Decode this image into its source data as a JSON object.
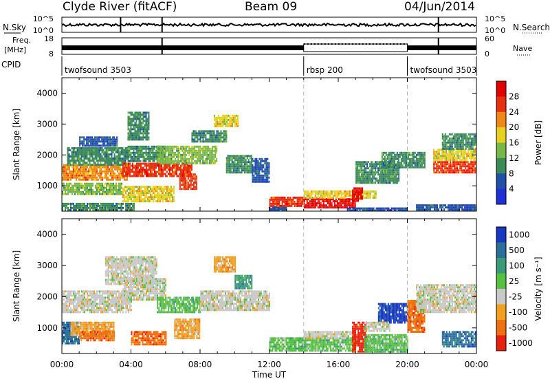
{
  "header": {
    "station": "Clyde River (fitACF)",
    "beam": "Beam 09",
    "date": "04/Jun/2014"
  },
  "top_panels": {
    "nsky_label": "N.Sky",
    "nsearch_label": "N.Search",
    "nsky_ticks": [
      "10^5",
      "10^0"
    ],
    "freq_label_1": "Freq.",
    "freq_label_2": "[MHz]",
    "freq_ticks": [
      "18",
      "8"
    ],
    "nave_ticks": [
      "60",
      "0"
    ],
    "nave_label": "Nave",
    "cpid_label": "CPID",
    "cpid_segments": [
      {
        "name": "twofsound 3503",
        "start_hour": 0,
        "end_hour": 14
      },
      {
        "name": "rbsp 200",
        "start_hour": 14,
        "end_hour": 20
      },
      {
        "name": "twofsound 3503",
        "start_hour": 20,
        "end_hour": 24
      }
    ]
  },
  "chart_data": [
    {
      "type": "heatmap",
      "panel": "power",
      "ylabel": "Slant Range [km]",
      "yticks": [
        1000,
        2000,
        3000,
        4000
      ],
      "ylim": [
        180,
        4500
      ],
      "xlim": [
        0,
        24
      ],
      "colorbar_label": "Power [dB]",
      "colorbar_ticks": [
        4,
        8,
        12,
        16,
        20,
        24,
        28
      ],
      "colorbar_range": [
        0,
        32
      ],
      "colors": [
        "#2030d8",
        "#2050a8",
        "#3a8a5a",
        "#78b848",
        "#e8d020",
        "#f08818",
        "#e83010",
        "#e00000"
      ],
      "regions": [
        {
          "t0": 0.0,
          "t1": 4.2,
          "r0": 180,
          "r1": 450,
          "level": 8
        },
        {
          "t0": 0.0,
          "t1": 3.5,
          "r0": 700,
          "r1": 1100,
          "level": 14
        },
        {
          "t0": 0.0,
          "t1": 3.8,
          "r0": 1200,
          "r1": 1700,
          "level": 20
        },
        {
          "t0": 0.3,
          "t1": 3.8,
          "r0": 1700,
          "r1": 2250,
          "level": 10
        },
        {
          "t0": 1.0,
          "t1": 3.2,
          "r0": 2300,
          "r1": 2600,
          "level": 6
        },
        {
          "t0": 3.5,
          "t1": 7.5,
          "r0": 1300,
          "r1": 1750,
          "level": 24
        },
        {
          "t0": 3.5,
          "t1": 6.5,
          "r0": 500,
          "r1": 1000,
          "level": 18
        },
        {
          "t0": 3.8,
          "t1": 6.0,
          "r0": 1800,
          "r1": 2300,
          "level": 10
        },
        {
          "t0": 3.8,
          "t1": 5.0,
          "r0": 2500,
          "r1": 3400,
          "level": 8
        },
        {
          "t0": 5.5,
          "t1": 9.0,
          "r0": 1700,
          "r1": 2300,
          "level": 12
        },
        {
          "t0": 6.8,
          "t1": 7.8,
          "r0": 900,
          "r1": 1400,
          "level": 26
        },
        {
          "t0": 7.5,
          "t1": 9.5,
          "r0": 2400,
          "r1": 2800,
          "level": 8
        },
        {
          "t0": 8.8,
          "t1": 10.2,
          "r0": 2900,
          "r1": 3300,
          "level": 16
        },
        {
          "t0": 9.5,
          "t1": 11.0,
          "r0": 1400,
          "r1": 2000,
          "level": 10
        },
        {
          "t0": 11.0,
          "t1": 12.0,
          "r0": 1100,
          "r1": 1900,
          "level": 6
        },
        {
          "t0": 12.0,
          "t1": 13.0,
          "r0": 200,
          "r1": 350,
          "level": 6
        },
        {
          "t0": 12.0,
          "t1": 14.0,
          "r0": 350,
          "r1": 650,
          "level": 26
        },
        {
          "t0": 14.0,
          "t1": 17.0,
          "r0": 300,
          "r1": 600,
          "level": 30
        },
        {
          "t0": 14.0,
          "t1": 18.2,
          "r0": 600,
          "r1": 850,
          "level": 18
        },
        {
          "t0": 16.8,
          "t1": 17.4,
          "r0": 500,
          "r1": 950,
          "level": 28
        },
        {
          "t0": 17.0,
          "t1": 19.5,
          "r0": 1100,
          "r1": 1800,
          "level": 8
        },
        {
          "t0": 18.5,
          "t1": 21.0,
          "r0": 1600,
          "r1": 2100,
          "level": 10
        },
        {
          "t0": 16.5,
          "t1": 20.0,
          "r0": 180,
          "r1": 300,
          "level": 6
        },
        {
          "t0": 21.5,
          "t1": 24.0,
          "r0": 1450,
          "r1": 1800,
          "level": 24
        },
        {
          "t0": 21.5,
          "t1": 24.0,
          "r0": 1800,
          "r1": 2200,
          "level": 16
        },
        {
          "t0": 22.0,
          "t1": 24.0,
          "r0": 2200,
          "r1": 2700,
          "level": 10
        },
        {
          "t0": 20.5,
          "t1": 24.0,
          "r0": 180,
          "r1": 400,
          "level": 6
        }
      ]
    },
    {
      "type": "heatmap",
      "panel": "velocity",
      "xlabel": "Time UT",
      "ylabel": "Slant Range [km]",
      "xticks": [
        "00:00",
        "04:00",
        "08:00",
        "12:00",
        "16:00",
        "20:00",
        "00:00"
      ],
      "yticks": [
        1000,
        2000,
        3000,
        4000
      ],
      "ylim": [
        180,
        4500
      ],
      "xlim": [
        0,
        24
      ],
      "colorbar_label": "Velocity [m s⁻¹]",
      "colorbar_ticks": [
        "1000",
        "500",
        "100",
        "25",
        "-25",
        "-100",
        "-500",
        "-1000"
      ],
      "colors": [
        "#1838c0",
        "#2a6e9a",
        "#3a9a78",
        "#56c040",
        "#c8c8c8",
        "#f0a020",
        "#f07010",
        "#e82010"
      ],
      "regions": [
        {
          "t0": 0.0,
          "t1": 1.0,
          "r0": 500,
          "r1": 1200,
          "level": 1
        },
        {
          "t0": 0.0,
          "t1": 4.0,
          "r0": 1500,
          "r1": 2200,
          "level": 4
        },
        {
          "t0": 0.5,
          "t1": 3.0,
          "r0": 800,
          "r1": 1200,
          "level": 5
        },
        {
          "t0": 1.0,
          "t1": 3.0,
          "r0": 600,
          "r1": 900,
          "level": 6
        },
        {
          "t0": 2.5,
          "t1": 5.5,
          "r0": 2400,
          "r1": 3300,
          "level": 4
        },
        {
          "t0": 3.5,
          "t1": 6.0,
          "r0": 1900,
          "r1": 2600,
          "level": 4
        },
        {
          "t0": 4.0,
          "t1": 6.0,
          "r0": 500,
          "r1": 900,
          "level": 6
        },
        {
          "t0": 5.5,
          "t1": 8.0,
          "r0": 1500,
          "r1": 2000,
          "level": 3
        },
        {
          "t0": 6.5,
          "t1": 8.0,
          "r0": 700,
          "r1": 1300,
          "level": 5
        },
        {
          "t0": 8.0,
          "t1": 12.0,
          "r0": 1600,
          "r1": 2200,
          "level": 4
        },
        {
          "t0": 8.8,
          "t1": 10.0,
          "r0": 2800,
          "r1": 3300,
          "level": 5
        },
        {
          "t0": 10.0,
          "t1": 11.0,
          "r0": 2300,
          "r1": 2700,
          "level": 2
        },
        {
          "t0": 12.0,
          "t1": 14.0,
          "r0": 300,
          "r1": 700,
          "level": 3
        },
        {
          "t0": 14.0,
          "t1": 17.0,
          "r0": 300,
          "r1": 700,
          "level": 3
        },
        {
          "t0": 14.0,
          "t1": 17.0,
          "r0": 700,
          "r1": 900,
          "level": 4
        },
        {
          "t0": 16.8,
          "t1": 17.6,
          "r0": 250,
          "r1": 1200,
          "level": 7
        },
        {
          "t0": 17.5,
          "t1": 20.0,
          "r0": 250,
          "r1": 800,
          "level": 3
        },
        {
          "t0": 18.3,
          "t1": 20.0,
          "r0": 1200,
          "r1": 1800,
          "level": 0
        },
        {
          "t0": 17.5,
          "t1": 19.0,
          "r0": 900,
          "r1": 1200,
          "level": 4
        },
        {
          "t0": 20.0,
          "t1": 21.0,
          "r0": 900,
          "r1": 1900,
          "level": 6
        },
        {
          "t0": 20.5,
          "t1": 24.0,
          "r0": 1500,
          "r1": 2400,
          "level": 4
        },
        {
          "t0": 22.0,
          "t1": 24.0,
          "r0": 400,
          "r1": 900,
          "level": 1
        }
      ]
    }
  ]
}
